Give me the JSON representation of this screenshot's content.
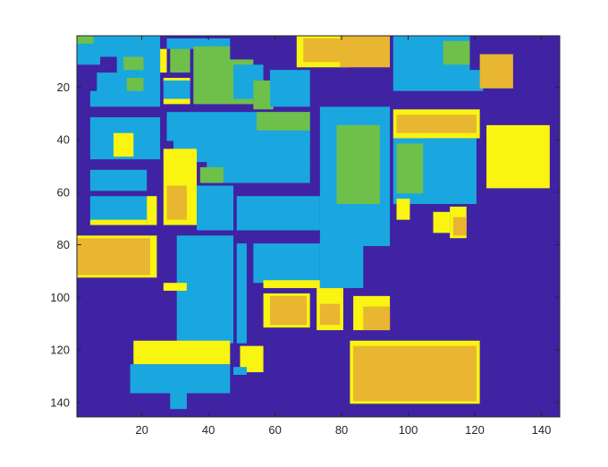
{
  "chart_data": {
    "type": "heatmap",
    "title": "",
    "xlabel": "",
    "ylabel": "",
    "xlim": [
      0.5,
      145.5
    ],
    "ylim": [
      0.5,
      145.5
    ],
    "y_direction": "reverse",
    "grid": false,
    "colors": {
      "background": "#3f23a3",
      "class_cyan": "#1aa7df",
      "class_green": "#6fbf4b",
      "class_yellow": "#faf411",
      "class_gold": "#e8b630",
      "axis": "#262626"
    },
    "x_ticks": [
      20,
      40,
      60,
      80,
      100,
      120,
      140
    ],
    "y_ticks": [
      20,
      40,
      60,
      80,
      100,
      120,
      140
    ],
    "regions": [
      {
        "cls": "class_cyan",
        "x": [
          1,
          25
        ],
        "y": [
          1,
          8
        ]
      },
      {
        "cls": "class_cyan",
        "x": [
          1,
          7
        ],
        "y": [
          8,
          11
        ]
      },
      {
        "cls": "class_green",
        "x": [
          1,
          5
        ],
        "y": [
          1,
          3
        ]
      },
      {
        "cls": "class_cyan",
        "x": [
          13,
          25
        ],
        "y": [
          8,
          15
        ]
      },
      {
        "cls": "class_green",
        "x": [
          15,
          20
        ],
        "y": [
          9,
          13
        ]
      },
      {
        "cls": "class_cyan",
        "x": [
          7,
          25
        ],
        "y": [
          15,
          22
        ]
      },
      {
        "cls": "class_green",
        "x": [
          16,
          20
        ],
        "y": [
          17,
          22
        ]
      },
      {
        "cls": "class_cyan",
        "x": [
          5,
          25
        ],
        "y": [
          22,
          27
        ]
      },
      {
        "cls": "class_yellow",
        "x": [
          26,
          27
        ],
        "y": [
          6,
          14
        ]
      },
      {
        "cls": "class_green",
        "x": [
          29,
          34
        ],
        "y": [
          5,
          14
        ]
      },
      {
        "cls": "class_yellow",
        "x": [
          27,
          34
        ],
        "y": [
          17,
          18
        ]
      },
      {
        "cls": "class_cyan",
        "x": [
          27,
          34
        ],
        "y": [
          18,
          25
        ]
      },
      {
        "cls": "class_yellow",
        "x": [
          27,
          34
        ],
        "y": [
          25,
          26
        ]
      },
      {
        "cls": "class_cyan",
        "x": [
          28,
          46
        ],
        "y": [
          2,
          5
        ]
      },
      {
        "cls": "class_green",
        "x": [
          36,
          46
        ],
        "y": [
          5,
          26
        ]
      },
      {
        "cls": "class_green",
        "x": [
          46,
          53
        ],
        "y": [
          10,
          26
        ]
      },
      {
        "cls": "class_cyan",
        "x": [
          48,
          56
        ],
        "y": [
          12,
          24
        ]
      },
      {
        "cls": "class_green",
        "x": [
          54,
          59
        ],
        "y": [
          18,
          28
        ]
      },
      {
        "cls": "class_cyan",
        "x": [
          59,
          70
        ],
        "y": [
          14,
          27
        ]
      },
      {
        "cls": "class_cyan",
        "x": [
          5,
          25
        ],
        "y": [
          32,
          47
        ]
      },
      {
        "cls": "class_yellow",
        "x": [
          12,
          17
        ],
        "y": [
          38,
          46
        ]
      },
      {
        "cls": "class_cyan",
        "x": [
          28,
          70
        ],
        "y": [
          30,
          40
        ]
      },
      {
        "cls": "class_green",
        "x": [
          55,
          70
        ],
        "y": [
          30,
          36
        ]
      },
      {
        "cls": "class_cyan",
        "x": [
          30,
          70
        ],
        "y": [
          40,
          48
        ]
      },
      {
        "cls": "class_cyan",
        "x": [
          40,
          70
        ],
        "y": [
          48,
          56
        ]
      },
      {
        "cls": "class_green",
        "x": [
          38,
          44
        ],
        "y": [
          51,
          56
        ]
      },
      {
        "cls": "class_cyan",
        "x": [
          5,
          21
        ],
        "y": [
          52,
          59
        ]
      },
      {
        "cls": "class_cyan",
        "x": [
          5,
          21
        ],
        "y": [
          62,
          72
        ]
      },
      {
        "cls": "class_yellow",
        "x": [
          5,
          21
        ],
        "y": [
          71,
          72
        ]
      },
      {
        "cls": "class_yellow",
        "x": [
          22,
          24
        ],
        "y": [
          62,
          72
        ]
      },
      {
        "cls": "class_yellow",
        "x": [
          27,
          36
        ],
        "y": [
          44,
          72
        ]
      },
      {
        "cls": "class_gold",
        "x": [
          28,
          33
        ],
        "y": [
          58,
          70
        ]
      },
      {
        "cls": "class_cyan",
        "x": [
          37,
          47
        ],
        "y": [
          58,
          74
        ]
      },
      {
        "cls": "class_cyan",
        "x": [
          49,
          73
        ],
        "y": [
          62,
          74
        ]
      },
      {
        "cls": "class_cyan",
        "x": [
          31,
          47
        ],
        "y": [
          77,
          117
        ]
      },
      {
        "cls": "class_yellow",
        "x": [
          27,
          33
        ],
        "y": [
          95,
          97
        ]
      },
      {
        "cls": "class_cyan",
        "x": [
          49,
          51
        ],
        "y": [
          80,
          117
        ]
      },
      {
        "cls": "class_cyan",
        "x": [
          54,
          73
        ],
        "y": [
          80,
          94
        ]
      },
      {
        "cls": "class_yellow",
        "x": [
          57,
          73
        ],
        "y": [
          94,
          96
        ]
      },
      {
        "cls": "class_cyan",
        "x": [
          74,
          94
        ],
        "y": [
          28,
          80
        ]
      },
      {
        "cls": "class_green",
        "x": [
          79,
          91
        ],
        "y": [
          35,
          64
        ]
      },
      {
        "cls": "class_cyan",
        "x": [
          74,
          86
        ],
        "y": [
          80,
          96
        ]
      },
      {
        "cls": "class_yellow",
        "x": [
          57,
          70
        ],
        "y": [
          99,
          111
        ]
      },
      {
        "cls": "class_gold",
        "x": [
          59,
          69
        ],
        "y": [
          100,
          110
        ]
      },
      {
        "cls": "class_yellow",
        "x": [
          73,
          80
        ],
        "y": [
          97,
          112
        ]
      },
      {
        "cls": "class_gold",
        "x": [
          74,
          79
        ],
        "y": [
          103,
          110
        ]
      },
      {
        "cls": "class_yellow",
        "x": [
          84,
          94
        ],
        "y": [
          100,
          112
        ]
      },
      {
        "cls": "class_gold",
        "x": [
          87,
          94
        ],
        "y": [
          104,
          112
        ]
      },
      {
        "cls": "class_yellow",
        "x": [
          18,
          46
        ],
        "y": [
          117,
          125
        ]
      },
      {
        "cls": "class_cyan",
        "x": [
          17,
          46
        ],
        "y": [
          126,
          136
        ]
      },
      {
        "cls": "class_cyan",
        "x": [
          29,
          33
        ],
        "y": [
          136,
          142
        ]
      },
      {
        "cls": "class_yellow",
        "x": [
          50,
          56
        ],
        "y": [
          119,
          128
        ]
      },
      {
        "cls": "class_cyan",
        "x": [
          48,
          51
        ],
        "y": [
          127,
          129
        ]
      },
      {
        "cls": "class_yellow",
        "x": [
          67,
          81
        ],
        "y": [
          1,
          12
        ]
      },
      {
        "cls": "class_gold",
        "x": [
          69,
          80
        ],
        "y": [
          2,
          10
        ]
      },
      {
        "cls": "class_gold",
        "x": [
          80,
          94
        ],
        "y": [
          1,
          12
        ]
      },
      {
        "cls": "class_cyan",
        "x": [
          96,
          118
        ],
        "y": [
          1,
          14
        ]
      },
      {
        "cls": "class_green",
        "x": [
          111,
          118
        ],
        "y": [
          3,
          11
        ]
      },
      {
        "cls": "class_cyan",
        "x": [
          96,
          122
        ],
        "y": [
          14,
          21
        ]
      },
      {
        "cls": "class_gold",
        "x": [
          122,
          131
        ],
        "y": [
          8,
          20
        ]
      },
      {
        "cls": "class_yellow",
        "x": [
          96,
          121
        ],
        "y": [
          29,
          39
        ]
      },
      {
        "cls": "class_gold",
        "x": [
          97,
          120
        ],
        "y": [
          31,
          37
        ]
      },
      {
        "cls": "class_cyan",
        "x": [
          96,
          120
        ],
        "y": [
          40,
          64
        ]
      },
      {
        "cls": "class_green",
        "x": [
          97,
          104
        ],
        "y": [
          42,
          60
        ]
      },
      {
        "cls": "class_yellow",
        "x": [
          97,
          100
        ],
        "y": [
          63,
          70
        ]
      },
      {
        "cls": "class_yellow",
        "x": [
          108,
          112
        ],
        "y": [
          68,
          75
        ]
      },
      {
        "cls": "class_yellow",
        "x": [
          113,
          117
        ],
        "y": [
          66,
          77
        ]
      },
      {
        "cls": "class_gold",
        "x": [
          114,
          117
        ],
        "y": [
          70,
          76
        ]
      },
      {
        "cls": "class_yellow",
        "x": [
          124,
          142
        ],
        "y": [
          35,
          58
        ]
      },
      {
        "cls": "class_yellow",
        "x": [
          1,
          24
        ],
        "y": [
          77,
          92
        ]
      },
      {
        "cls": "class_gold",
        "x": [
          1,
          22
        ],
        "y": [
          78,
          91
        ]
      },
      {
        "cls": "class_yellow",
        "x": [
          83,
          121
        ],
        "y": [
          117,
          140
        ]
      },
      {
        "cls": "class_gold",
        "x": [
          84,
          120
        ],
        "y": [
          119,
          139
        ]
      }
    ],
    "rows_note": "",
    "grid_data": []
  }
}
